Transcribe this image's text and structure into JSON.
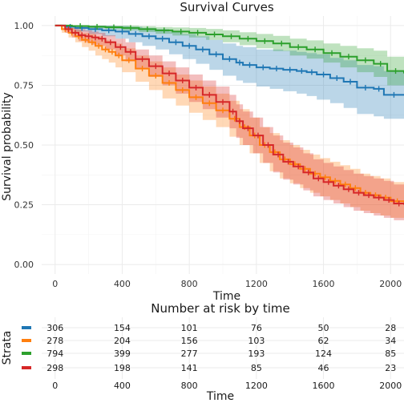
{
  "chart_data": [
    {
      "type": "line",
      "title": "Survival Curves",
      "xlabel": "Time",
      "ylabel": "Survival probability",
      "xlim": [
        -80,
        2080
      ],
      "ylim": [
        -0.04,
        1.04
      ],
      "xticks": [
        0,
        400,
        800,
        1200,
        1600,
        2000
      ],
      "yticks": [
        0.0,
        0.25,
        0.5,
        0.75,
        1.0
      ],
      "ytick_labels": [
        "0.00",
        "0.25",
        "0.50",
        "0.75",
        "1.00"
      ],
      "grid": true,
      "legend": "none",
      "series": [
        {
          "color": "#1f77b4",
          "x": [
            0,
            60,
            120,
            200,
            280,
            360,
            440,
            520,
            600,
            680,
            760,
            840,
            920,
            1000,
            1080,
            1120,
            1200,
            1280,
            1360,
            1440,
            1500,
            1560,
            1640,
            1720,
            1800,
            1900,
            1960,
            2080
          ],
          "y": [
            1.0,
            0.995,
            0.99,
            0.985,
            0.98,
            0.975,
            0.965,
            0.955,
            0.945,
            0.93,
            0.915,
            0.9,
            0.88,
            0.86,
            0.845,
            0.835,
            0.825,
            0.82,
            0.815,
            0.81,
            0.805,
            0.795,
            0.78,
            0.765,
            0.74,
            0.735,
            0.71,
            0.71
          ],
          "lower": [
            1.0,
            0.985,
            0.975,
            0.965,
            0.955,
            0.945,
            0.93,
            0.915,
            0.9,
            0.88,
            0.86,
            0.84,
            0.815,
            0.79,
            0.77,
            0.76,
            0.745,
            0.735,
            0.725,
            0.715,
            0.705,
            0.69,
            0.675,
            0.655,
            0.63,
            0.62,
            0.61,
            0.61
          ],
          "upper": [
            1.0,
            1.0,
            1.0,
            1.0,
            1.0,
            0.998,
            0.995,
            0.99,
            0.985,
            0.975,
            0.965,
            0.955,
            0.94,
            0.925,
            0.915,
            0.91,
            0.9,
            0.9,
            0.895,
            0.89,
            0.885,
            0.88,
            0.865,
            0.855,
            0.835,
            0.83,
            0.81,
            0.81
          ]
        },
        {
          "color": "#ff7f0e",
          "x": [
            0,
            40,
            80,
            120,
            160,
            200,
            240,
            280,
            320,
            360,
            400,
            480,
            560,
            640,
            720,
            800,
            880,
            960,
            1040,
            1100,
            1160,
            1220,
            1280,
            1340,
            1400,
            1460,
            1520,
            1580,
            1640,
            1700,
            1760,
            1820,
            1880,
            1940,
            2000,
            2080
          ],
          "y": [
            1.0,
            0.985,
            0.97,
            0.955,
            0.94,
            0.93,
            0.915,
            0.9,
            0.89,
            0.875,
            0.855,
            0.82,
            0.79,
            0.76,
            0.73,
            0.7,
            0.675,
            0.645,
            0.61,
            0.575,
            0.54,
            0.5,
            0.47,
            0.44,
            0.42,
            0.4,
            0.38,
            0.365,
            0.35,
            0.335,
            0.32,
            0.3,
            0.29,
            0.28,
            0.265,
            0.26
          ],
          "lower": [
            1.0,
            0.97,
            0.95,
            0.93,
            0.91,
            0.895,
            0.875,
            0.86,
            0.845,
            0.825,
            0.805,
            0.765,
            0.73,
            0.695,
            0.665,
            0.635,
            0.605,
            0.575,
            0.535,
            0.5,
            0.465,
            0.425,
            0.39,
            0.36,
            0.34,
            0.32,
            0.3,
            0.285,
            0.27,
            0.255,
            0.24,
            0.225,
            0.215,
            0.205,
            0.195,
            0.19
          ],
          "upper": [
            1.0,
            1.0,
            0.99,
            0.98,
            0.97,
            0.965,
            0.955,
            0.94,
            0.935,
            0.925,
            0.905,
            0.875,
            0.85,
            0.825,
            0.795,
            0.77,
            0.745,
            0.715,
            0.685,
            0.65,
            0.615,
            0.575,
            0.55,
            0.52,
            0.5,
            0.48,
            0.46,
            0.445,
            0.43,
            0.415,
            0.4,
            0.38,
            0.37,
            0.36,
            0.345,
            0.34
          ]
        },
        {
          "color": "#2ca02c",
          "x": [
            0,
            100,
            200,
            300,
            400,
            500,
            600,
            700,
            800,
            900,
            1000,
            1100,
            1200,
            1300,
            1400,
            1500,
            1600,
            1700,
            1800,
            1900,
            1980,
            2080
          ],
          "y": [
            1.0,
            0.998,
            0.995,
            0.993,
            0.99,
            0.985,
            0.98,
            0.975,
            0.97,
            0.963,
            0.955,
            0.945,
            0.935,
            0.925,
            0.91,
            0.9,
            0.885,
            0.87,
            0.855,
            0.84,
            0.81,
            0.8
          ],
          "lower": [
            1.0,
            0.994,
            0.989,
            0.985,
            0.98,
            0.973,
            0.966,
            0.958,
            0.95,
            0.94,
            0.93,
            0.918,
            0.905,
            0.893,
            0.875,
            0.862,
            0.845,
            0.825,
            0.805,
            0.785,
            0.75,
            0.73
          ],
          "upper": [
            1.0,
            1.0,
            1.0,
            1.0,
            1.0,
            0.997,
            0.994,
            0.992,
            0.99,
            0.986,
            0.98,
            0.972,
            0.965,
            0.957,
            0.945,
            0.938,
            0.925,
            0.915,
            0.905,
            0.895,
            0.87,
            0.87
          ]
        },
        {
          "color": "#d62728",
          "x": [
            0,
            60,
            100,
            140,
            180,
            220,
            260,
            300,
            360,
            420,
            480,
            560,
            640,
            720,
            800,
            880,
            960,
            1040,
            1080,
            1120,
            1180,
            1240,
            1300,
            1360,
            1420,
            1480,
            1540,
            1600,
            1660,
            1720,
            1780,
            1840,
            1900,
            1960,
            2020,
            2080
          ],
          "y": [
            1.0,
            0.985,
            0.97,
            0.96,
            0.955,
            0.95,
            0.945,
            0.93,
            0.91,
            0.89,
            0.86,
            0.83,
            0.8,
            0.77,
            0.74,
            0.71,
            0.68,
            0.64,
            0.6,
            0.57,
            0.54,
            0.5,
            0.46,
            0.43,
            0.41,
            0.385,
            0.36,
            0.345,
            0.33,
            0.315,
            0.3,
            0.29,
            0.28,
            0.27,
            0.255,
            0.25
          ],
          "lower": [
            1.0,
            0.97,
            0.95,
            0.935,
            0.93,
            0.92,
            0.915,
            0.9,
            0.875,
            0.85,
            0.82,
            0.785,
            0.75,
            0.715,
            0.68,
            0.65,
            0.615,
            0.57,
            0.53,
            0.5,
            0.465,
            0.425,
            0.385,
            0.355,
            0.335,
            0.31,
            0.285,
            0.27,
            0.255,
            0.24,
            0.225,
            0.215,
            0.205,
            0.195,
            0.185,
            0.18
          ],
          "upper": [
            1.0,
            1.0,
            0.99,
            0.985,
            0.98,
            0.975,
            0.97,
            0.96,
            0.945,
            0.93,
            0.9,
            0.875,
            0.85,
            0.825,
            0.795,
            0.77,
            0.745,
            0.71,
            0.67,
            0.64,
            0.615,
            0.575,
            0.54,
            0.51,
            0.49,
            0.465,
            0.44,
            0.425,
            0.41,
            0.395,
            0.38,
            0.37,
            0.36,
            0.35,
            0.335,
            0.33
          ]
        }
      ]
    },
    {
      "type": "table",
      "title": "Number at risk by time",
      "xlabel": "Time",
      "ylabel": "Strata",
      "xlim": [
        -80,
        2080
      ],
      "times": [
        0,
        400,
        800,
        1200,
        1600,
        2000
      ],
      "time_labels": [
        "0",
        "400",
        "800",
        "1200",
        "1600",
        "2000"
      ],
      "rows": [
        {
          "color": "#1f77b4",
          "values": [
            "306",
            "154",
            "101",
            "76",
            "50",
            "28"
          ]
        },
        {
          "color": "#ff7f0e",
          "values": [
            "278",
            "204",
            "156",
            "103",
            "62",
            "34"
          ]
        },
        {
          "color": "#2ca02c",
          "values": [
            "794",
            "399",
            "277",
            "193",
            "124",
            "85"
          ]
        },
        {
          "color": "#d62728",
          "values": [
            "298",
            "198",
            "141",
            "85",
            "46",
            "23"
          ]
        }
      ]
    }
  ]
}
